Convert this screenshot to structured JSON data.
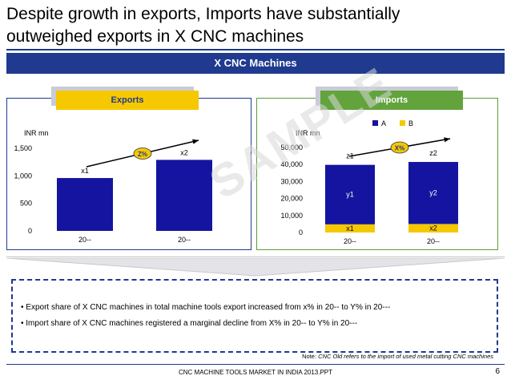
{
  "slide": {
    "title": "Despite growth in exports, Imports have substantially outweighed exports in X CNC machines",
    "banner": "X CNC Machines",
    "watermark": "SAMPLE",
    "footer": "CNC MACHINE TOOLS MARKET IN INDIA 2013.PPT",
    "page_number": "6"
  },
  "panels": {
    "exports_label": "Exports",
    "imports_label": "Imports"
  },
  "notes": {
    "bullets": [
      "• Export share of X CNC machines in total machine tools export increased from x% in 20-- to Y% in 20---",
      "• Import share of X CNC machines registered a marginal decline from X% in 20-- to Y% in 20---"
    ],
    "footnote_prefix": "Note: ",
    "footnote_italic": "CNC Old refers to the import of used metal cutting CNC machines"
  },
  "chart_data": [
    {
      "type": "bar",
      "unit_label": "INR mn",
      "categories": [
        "20--",
        "20--"
      ],
      "values": [
        960,
        1290
      ],
      "data_labels": [
        "x1",
        "x2"
      ],
      "ylim": [
        0,
        1500
      ],
      "yticks": [
        0,
        500,
        1000,
        1500
      ],
      "ytick_labels": [
        "0",
        "500",
        "1,000",
        "1,500"
      ],
      "growth_label": "Z%",
      "colors": {
        "bar": "#1414a0",
        "growth_badge": "#f6c800"
      }
    },
    {
      "type": "bar",
      "stacked": true,
      "unit_label": "INR mn",
      "categories": [
        "20--",
        "20--"
      ],
      "ylim": [
        0,
        50000
      ],
      "yticks": [
        0,
        10000,
        20000,
        30000,
        40000,
        50000
      ],
      "ytick_labels": [
        "0",
        "10,000",
        "20,000",
        "30,000",
        "40,000",
        "50,000"
      ],
      "series": [
        {
          "name": "A",
          "values": [
            35000,
            36500
          ],
          "labels": [
            "y1",
            "y2"
          ],
          "color": "#1414a0"
        },
        {
          "name": "B",
          "values": [
            4800,
            5000
          ],
          "labels": [
            "x1",
            "x2"
          ],
          "color": "#f6c800"
        }
      ],
      "total_labels": [
        "z1",
        "z2"
      ],
      "legend": "top",
      "growth_label": "X%",
      "colors": {
        "growth_badge": "#f6c800"
      }
    }
  ]
}
